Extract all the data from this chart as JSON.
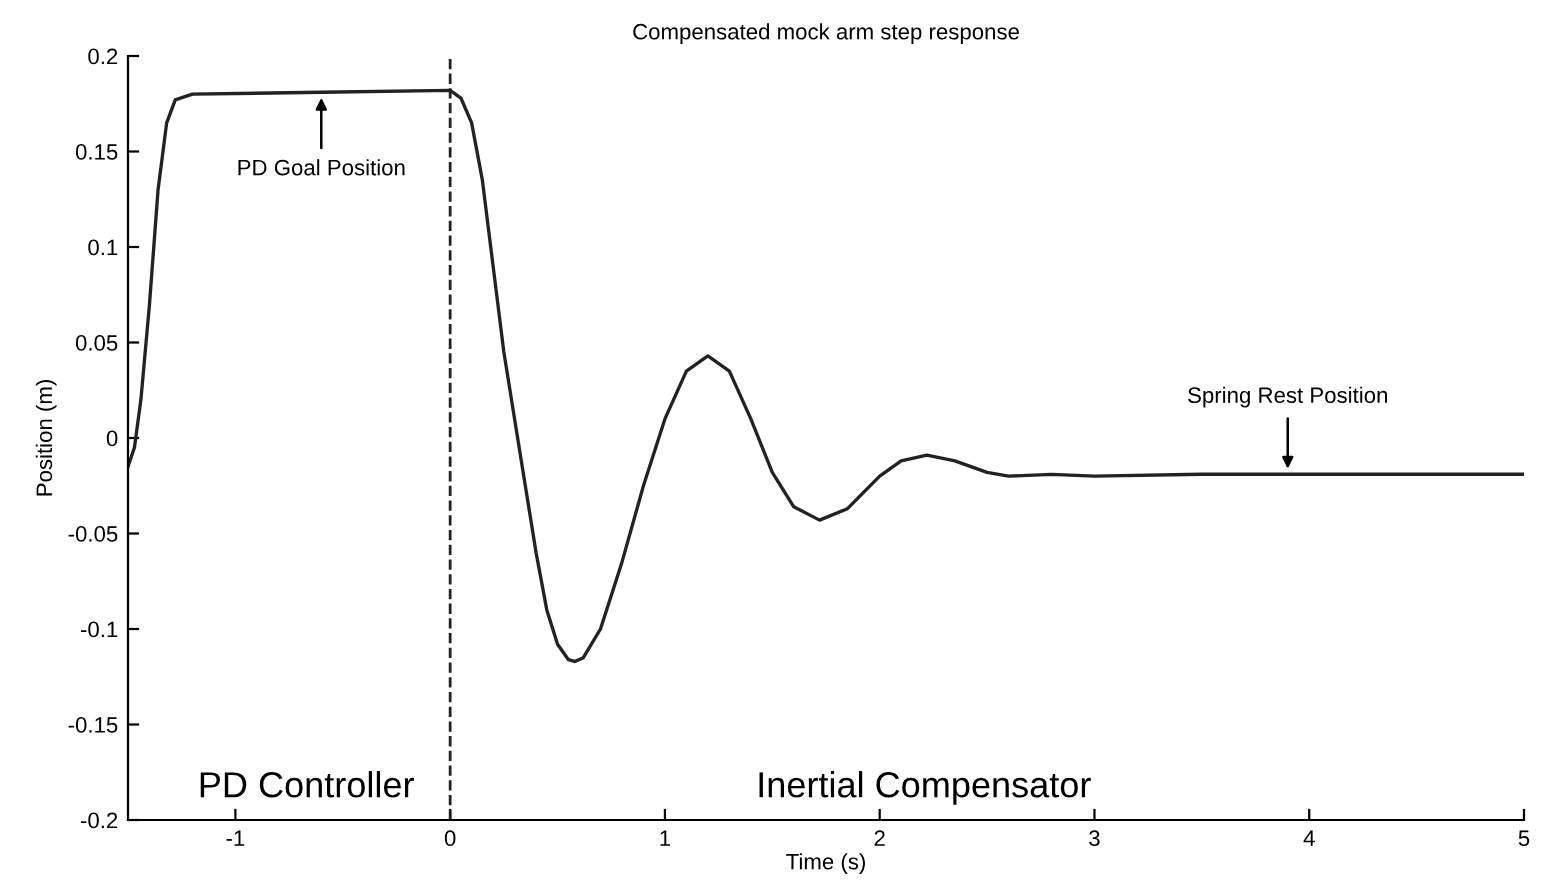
{
  "chart_data": {
    "type": "line",
    "title": "Compensated mock arm step response",
    "xlabel": "Time (s)",
    "ylabel": "Position (m)",
    "x": [
      -1.5,
      -1.47,
      -1.44,
      -1.4,
      -1.36,
      -1.32,
      -1.28,
      -1.2,
      -0.6,
      0,
      0.05,
      0.1,
      0.15,
      0.2,
      0.25,
      0.3,
      0.35,
      0.4,
      0.45,
      0.5,
      0.55,
      0.58,
      0.62,
      0.7,
      0.8,
      0.9,
      1.0,
      1.1,
      1.2,
      1.3,
      1.4,
      1.5,
      1.6,
      1.72,
      1.85,
      2.0,
      2.1,
      2.22,
      2.35,
      2.5,
      2.6,
      2.8,
      3.0,
      3.5,
      4,
      5
    ],
    "series": [
      {
        "color": "#222222",
        "values": [
          -0.015,
          -0.005,
          0.02,
          0.07,
          0.13,
          0.165,
          0.177,
          0.18,
          0.181,
          0.182,
          0.178,
          0.165,
          0.135,
          0.09,
          0.045,
          0.01,
          -0.025,
          -0.06,
          -0.09,
          -0.108,
          -0.116,
          -0.117,
          -0.115,
          -0.1,
          -0.065,
          -0.025,
          0.01,
          0.035,
          0.043,
          0.035,
          0.01,
          -0.018,
          -0.036,
          -0.043,
          -0.037,
          -0.02,
          -0.012,
          -0.009,
          -0.012,
          -0.018,
          -0.02,
          -0.019,
          -0.02,
          -0.019,
          -0.019,
          -0.019
        ]
      }
    ],
    "xlim": [
      -1.5,
      5
    ],
    "ylim": [
      -0.2,
      0.2
    ],
    "xticks": [
      -1,
      0,
      1,
      2,
      3,
      4,
      5
    ],
    "yticks": [
      -0.2,
      -0.15,
      -0.1,
      -0.05,
      0,
      0.05,
      0.1,
      0.15,
      0.2
    ],
    "ref_lines": [
      {
        "axis": "x",
        "value": 0,
        "color": "#222222",
        "line_style": "dashed"
      }
    ],
    "annotations": [
      {
        "text": "PD Goal Position",
        "x": -0.6,
        "y": 0.181
      },
      {
        "text": "Spring Rest Position",
        "x": 3.9,
        "y": -0.019
      },
      "PD Controller",
      "Inertial Compensator"
    ],
    "grid": false,
    "legend": false
  }
}
